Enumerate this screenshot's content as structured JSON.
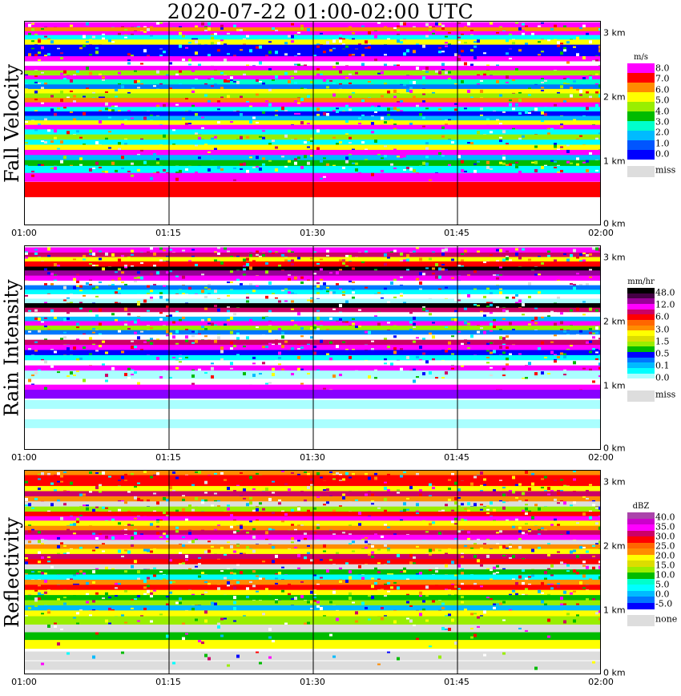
{
  "title": "2020-07-22   01:00-02:00 UTC",
  "x_ticks": [
    "01:00",
    "01:15",
    "01:30",
    "01:45",
    "02:00"
  ],
  "y_ticks": [
    "0 km",
    "1 km",
    "2 km",
    "3 km"
  ],
  "chart_data": [
    {
      "type": "heatmap",
      "id": "fall",
      "ylabel": "Fall Velocity",
      "xlim": [
        "01:00",
        "02:00"
      ],
      "ylim_km": [
        0,
        3.2
      ],
      "legend_unit": "m/s",
      "legend_labels": [
        "8.0",
        "7.0",
        "6.0",
        "5.0",
        "4.0",
        "3.0",
        "2.0",
        "1.0",
        "0.0"
      ],
      "legend_colors": [
        "#ff00ff",
        "#ff0000",
        "#ff8c00",
        "#ffff00",
        "#99ee00",
        "#00bb00",
        "#00ffcc",
        "#00bbff",
        "#0055ff",
        "#0000ff"
      ],
      "miss_label": "miss",
      "miss_color": "#dddddd",
      "rows": [
        {
          "h": 3.11,
          "c": "#ff00ff",
          "n": 0.35
        },
        {
          "h": 3.03,
          "c": "#ff8c00",
          "n": 0.3
        },
        {
          "h": 2.97,
          "c": "#ff00ff",
          "n": 0.25
        },
        {
          "h": 2.91,
          "c": "#00ffff",
          "n": 0.25
        },
        {
          "h": 2.84,
          "c": "#ffff00",
          "n": 0.35
        },
        {
          "h": 2.76,
          "c": "#0000ff",
          "n": 0.3
        },
        {
          "h": 2.69,
          "c": "#0000ff",
          "n": 0.3
        },
        {
          "h": 2.58,
          "c": "#ff00ff",
          "n": 0.1
        },
        {
          "h": 2.5,
          "c": "#ffffff",
          "n": 0.2
        },
        {
          "h": 2.43,
          "c": "#ff00ff",
          "n": 0.1
        },
        {
          "h": 2.36,
          "c": "#99ee00",
          "n": 0.35
        },
        {
          "h": 2.28,
          "c": "#ff00ff",
          "n": 0.2
        },
        {
          "h": 2.22,
          "c": "#00ffcc",
          "n": 0.4
        },
        {
          "h": 2.14,
          "c": "#0077ff",
          "n": 0.2
        },
        {
          "h": 2.07,
          "c": "#ffff00",
          "n": 0.2
        },
        {
          "h": 2.0,
          "c": "#99ee00",
          "n": 0.3
        },
        {
          "h": 1.93,
          "c": "#ff8c00",
          "n": 0.15
        },
        {
          "h": 1.86,
          "c": "#ff00ff",
          "n": 0.2
        },
        {
          "h": 1.79,
          "c": "#00ffff",
          "n": 0.3
        },
        {
          "h": 1.72,
          "c": "#0000ff",
          "n": 0.25
        },
        {
          "h": 1.65,
          "c": "#00bbff",
          "n": 0.2
        },
        {
          "h": 1.58,
          "c": "#ffff00",
          "n": 0.25
        },
        {
          "h": 1.51,
          "c": "#ff00ff",
          "n": 0.1
        },
        {
          "h": 1.44,
          "c": "#00ffff",
          "n": 0.2
        },
        {
          "h": 1.36,
          "c": "#99ee00",
          "n": 0.2
        },
        {
          "h": 1.28,
          "c": "#00ffff",
          "n": 0.25
        },
        {
          "h": 1.2,
          "c": "#ffff00",
          "n": 0.15
        },
        {
          "h": 1.12,
          "c": "#ff00ff",
          "n": 0.15
        },
        {
          "h": 1.04,
          "c": "#00bbff",
          "n": 0.2
        },
        {
          "h": 0.96,
          "c": "#00bb00",
          "n": 0.45
        },
        {
          "h": 0.87,
          "c": "#00ffff",
          "n": 0.35
        },
        {
          "h": 0.76,
          "c": "#ff00ff",
          "n": 0.05
        },
        {
          "h": 0.62,
          "c": "#ff0000",
          "n": 0.0
        },
        {
          "h": 0.52,
          "c": "#ff0000",
          "n": 0.0
        }
      ]
    },
    {
      "type": "heatmap",
      "id": "rain",
      "ylabel": "Rain Intensity",
      "xlim": [
        "01:00",
        "02:00"
      ],
      "ylim_km": [
        0,
        3.2
      ],
      "legend_unit": "mm/hr",
      "legend_labels": [
        "48.0",
        "12.0",
        "6.0",
        "3.0",
        "1.5",
        "0.5",
        "0.1",
        "0.0"
      ],
      "legend_colors": [
        "#000000",
        "#440044",
        "#990099",
        "#ff00ff",
        "#cc0066",
        "#ff0000",
        "#ff6600",
        "#ff8c00",
        "#ffff00",
        "#dddd00",
        "#99ee00",
        "#00bb00",
        "#0000ff",
        "#0077ff",
        "#00bbff",
        "#00ffff",
        "#aaffff",
        "#ffffff"
      ],
      "miss_label": "miss",
      "miss_color": "#dddddd",
      "rows": [
        {
          "h": 3.1,
          "c": "#ff00ff",
          "n": 0.4
        },
        {
          "h": 3.02,
          "c": "#cc0066",
          "n": 0.35
        },
        {
          "h": 2.95,
          "c": "#ffff00",
          "n": 0.35
        },
        {
          "h": 2.88,
          "c": "#ff0000",
          "n": 0.35
        },
        {
          "h": 2.8,
          "c": "#000000",
          "n": 0.2
        },
        {
          "h": 2.74,
          "c": "#990099",
          "n": 0.25
        },
        {
          "h": 2.66,
          "c": "#ff00ff",
          "n": 0.25
        },
        {
          "h": 2.58,
          "c": "#ffffff",
          "n": 0.3
        },
        {
          "h": 2.51,
          "c": "#0077ff",
          "n": 0.3
        },
        {
          "h": 2.44,
          "c": "#00ffff",
          "n": 0.3
        },
        {
          "h": 2.37,
          "c": "#ffffff",
          "n": 0.25
        },
        {
          "h": 2.3,
          "c": "#aaffff",
          "n": 0.2
        },
        {
          "h": 2.23,
          "c": "#000000",
          "n": 0.15
        },
        {
          "h": 2.16,
          "c": "#cc0066",
          "n": 0.25
        },
        {
          "h": 2.09,
          "c": "#ffffff",
          "n": 0.15
        },
        {
          "h": 2.02,
          "c": "#00bbff",
          "n": 0.3
        },
        {
          "h": 1.95,
          "c": "#ff00ff",
          "n": 0.25
        },
        {
          "h": 1.88,
          "c": "#99ee00",
          "n": 0.3
        },
        {
          "h": 1.81,
          "c": "#0077ff",
          "n": 0.3
        },
        {
          "h": 1.74,
          "c": "#ffffff",
          "n": 0.3
        },
        {
          "h": 1.66,
          "c": "#cc0066",
          "n": 0.25
        },
        {
          "h": 1.58,
          "c": "#ff00ff",
          "n": 0.3
        },
        {
          "h": 1.5,
          "c": "#0000ff",
          "n": 0.3
        },
        {
          "h": 1.42,
          "c": "#00ffff",
          "n": 0.3
        },
        {
          "h": 1.34,
          "c": "#ffffff",
          "n": 0.2
        },
        {
          "h": 1.26,
          "c": "#ff00ff",
          "n": 0.2
        },
        {
          "h": 1.18,
          "c": "#aaffff",
          "n": 0.2
        },
        {
          "h": 1.05,
          "c": "#ffffff",
          "n": 0.1
        },
        {
          "h": 0.96,
          "c": "#ff00ff",
          "n": 0.05
        },
        {
          "h": 0.88,
          "c": "#8800ff",
          "n": 0.0
        },
        {
          "h": 0.72,
          "c": "#aaffff",
          "n": 0.0
        },
        {
          "h": 0.42,
          "c": "#aaffff",
          "n": 0.0
        }
      ]
    },
    {
      "type": "heatmap",
      "id": "refl",
      "ylabel": "Reflectivity",
      "xlim": [
        "01:00",
        "02:00"
      ],
      "ylim_km": [
        0,
        3.2
      ],
      "legend_unit": "dBZ",
      "legend_labels": [
        "40.0",
        "35.0",
        "30.0",
        "25.0",
        "20.0",
        "15.0",
        "10.0",
        "5.0",
        "0.0",
        "-5.0"
      ],
      "legend_colors": [
        "#aa44aa",
        "#cc00cc",
        "#ff00ff",
        "#cc0066",
        "#ff0000",
        "#ff6600",
        "#ff8c00",
        "#ffff00",
        "#dddd00",
        "#99ee00",
        "#00bb00",
        "#00ffcc",
        "#00ffff",
        "#00bbff",
        "#0077ff",
        "#0000ff"
      ],
      "miss_label": "none",
      "miss_color": "#dddddd",
      "rows": [
        {
          "h": 3.12,
          "c": "#ff8c00",
          "n": 0.4
        },
        {
          "h": 3.05,
          "c": "#ff0000",
          "n": 0.25
        },
        {
          "h": 2.96,
          "c": "#ff0000",
          "n": 0.15
        },
        {
          "h": 2.88,
          "c": "#ffff00",
          "n": 0.35
        },
        {
          "h": 2.8,
          "c": "#cc0066",
          "n": 0.2
        },
        {
          "h": 2.72,
          "c": "#ff8c00",
          "n": 0.35
        },
        {
          "h": 2.64,
          "c": "#dddddd",
          "n": 0.35
        },
        {
          "h": 2.56,
          "c": "#99ee00",
          "n": 0.35
        },
        {
          "h": 2.48,
          "c": "#ff0000",
          "n": 0.15
        },
        {
          "h": 2.41,
          "c": "#ff00ff",
          "n": 0.2
        },
        {
          "h": 2.34,
          "c": "#ffff00",
          "n": 0.3
        },
        {
          "h": 2.26,
          "c": "#ff8c00",
          "n": 0.3
        },
        {
          "h": 2.19,
          "c": "#cc0066",
          "n": 0.25
        },
        {
          "h": 2.12,
          "c": "#ff00ff",
          "n": 0.25
        },
        {
          "h": 2.04,
          "c": "#dddddd",
          "n": 0.3
        },
        {
          "h": 1.97,
          "c": "#ff8c00",
          "n": 0.3
        },
        {
          "h": 1.9,
          "c": "#ffff00",
          "n": 0.3
        },
        {
          "h": 1.82,
          "c": "#cc0066",
          "n": 0.2
        },
        {
          "h": 1.74,
          "c": "#ff0000",
          "n": 0.25
        },
        {
          "h": 1.66,
          "c": "#dddddd",
          "n": 0.3
        },
        {
          "h": 1.58,
          "c": "#00bb00",
          "n": 0.35
        },
        {
          "h": 1.5,
          "c": "#00ffff",
          "n": 0.35
        },
        {
          "h": 1.42,
          "c": "#ff8c00",
          "n": 0.3
        },
        {
          "h": 1.34,
          "c": "#ff0000",
          "n": 0.2
        },
        {
          "h": 1.26,
          "c": "#ffff00",
          "n": 0.3
        },
        {
          "h": 1.18,
          "c": "#00bb00",
          "n": 0.35
        },
        {
          "h": 1.1,
          "c": "#99ee00",
          "n": 0.3
        },
        {
          "h": 1.02,
          "c": "#00bbff",
          "n": 0.2
        },
        {
          "h": 0.94,
          "c": "#ffff00",
          "n": 0.2
        },
        {
          "h": 0.85,
          "c": "#99ee00",
          "n": 0.2
        },
        {
          "h": 0.72,
          "c": "#dddddd",
          "n": 0.1
        },
        {
          "h": 0.6,
          "c": "#00bb00",
          "n": 0.1
        },
        {
          "h": 0.48,
          "c": "#ffff00",
          "n": 0.05
        },
        {
          "h": 0.3,
          "c": "#dddddd",
          "n": 0.05
        },
        {
          "h": 0.15,
          "c": "#dddddd",
          "n": 0.05
        }
      ]
    }
  ]
}
